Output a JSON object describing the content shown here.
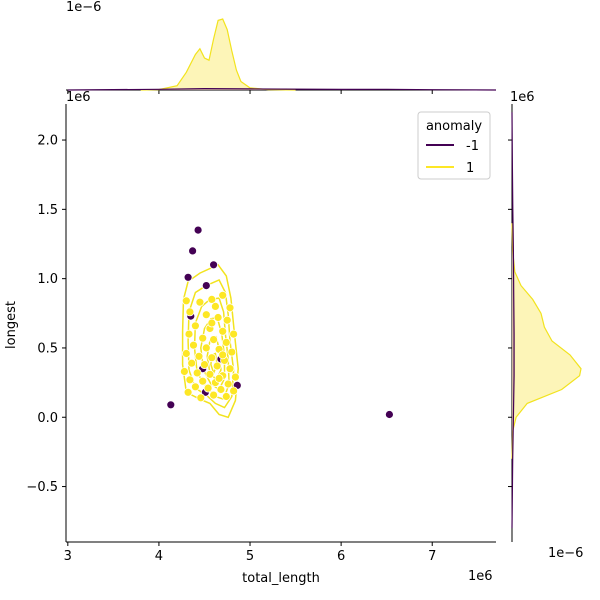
{
  "chart_data": {
    "type": "scatter",
    "title": "",
    "xlabel": "total_length",
    "ylabel": "longest",
    "x_offset_label": "1e6",
    "y_offset_label": "1e6",
    "top_margin_offset_label": "1e−6",
    "right_margin_offset_label": "1e−6",
    "right_margin_top_label": "1e6",
    "xlim": [
      2.98,
      7.7
    ],
    "ylim": [
      -0.9,
      2.26
    ],
    "xticks": [
      3,
      4,
      5,
      6,
      7
    ],
    "yticks": [
      -0.5,
      0.0,
      0.5,
      1.0,
      1.5,
      2.0
    ],
    "xtick_labels": [
      "3",
      "4",
      "5",
      "6",
      "7"
    ],
    "ytick_labels": [
      "−0.5",
      "0.0",
      "0.5",
      "1.0",
      "1.5",
      "2.0"
    ],
    "legend": {
      "title": "anomaly",
      "placement": "top-right",
      "entries": [
        {
          "label": "-1",
          "color": "#440154"
        },
        {
          "label": "1",
          "color": "#fde725"
        }
      ]
    },
    "colors": {
      "anomaly": "#440154",
      "normal": "#fde725",
      "normal_line": "#f2e31e",
      "normal_fill": "#fdf5b8"
    },
    "series": [
      {
        "name": "-1",
        "points": [
          [
            4.43,
            1.35
          ],
          [
            4.37,
            1.2
          ],
          [
            4.6,
            1.1
          ],
          [
            4.32,
            1.01
          ],
          [
            4.52,
            0.95
          ],
          [
            4.35,
            0.73
          ],
          [
            4.68,
            0.42
          ],
          [
            4.48,
            0.35
          ],
          [
            4.86,
            0.23
          ],
          [
            4.51,
            0.18
          ],
          [
            4.13,
            0.09
          ],
          [
            6.53,
            0.02
          ]
        ]
      },
      {
        "name": "1",
        "points": [
          [
            4.3,
            0.84
          ],
          [
            4.45,
            0.83
          ],
          [
            4.58,
            0.85
          ],
          [
            4.62,
            0.8
          ],
          [
            4.7,
            0.88
          ],
          [
            4.78,
            0.79
          ],
          [
            4.34,
            0.76
          ],
          [
            4.52,
            0.74
          ],
          [
            4.65,
            0.72
          ],
          [
            4.75,
            0.7
          ],
          [
            4.4,
            0.66
          ],
          [
            4.56,
            0.64
          ],
          [
            4.7,
            0.62
          ],
          [
            4.82,
            0.6
          ],
          [
            4.33,
            0.6
          ],
          [
            4.48,
            0.57
          ],
          [
            4.6,
            0.56
          ],
          [
            4.74,
            0.54
          ],
          [
            4.38,
            0.52
          ],
          [
            4.52,
            0.5
          ],
          [
            4.66,
            0.49
          ],
          [
            4.8,
            0.47
          ],
          [
            4.3,
            0.46
          ],
          [
            4.44,
            0.44
          ],
          [
            4.58,
            0.43
          ],
          [
            4.72,
            0.41
          ],
          [
            4.36,
            0.39
          ],
          [
            4.5,
            0.38
          ],
          [
            4.64,
            0.37
          ],
          [
            4.78,
            0.35
          ],
          [
            4.28,
            0.33
          ],
          [
            4.42,
            0.32
          ],
          [
            4.56,
            0.31
          ],
          [
            4.7,
            0.3
          ],
          [
            4.84,
            0.29
          ],
          [
            4.34,
            0.27
          ],
          [
            4.48,
            0.26
          ],
          [
            4.62,
            0.25
          ],
          [
            4.76,
            0.24
          ],
          [
            4.4,
            0.22
          ],
          [
            4.54,
            0.21
          ],
          [
            4.68,
            0.2
          ],
          [
            4.82,
            0.19
          ],
          [
            4.32,
            0.18
          ],
          [
            4.6,
            0.16
          ],
          [
            4.74,
            0.15
          ],
          [
            4.46,
            0.14
          ],
          [
            4.66,
            0.28
          ],
          [
            4.58,
            0.68
          ],
          [
            4.7,
            0.45
          ]
        ]
      }
    ],
    "marginals": [
      {
        "axis": "x",
        "series": "1",
        "x": [
          3.8,
          4.0,
          4.2,
          4.3,
          4.4,
          4.45,
          4.5,
          4.55,
          4.6,
          4.65,
          4.7,
          4.75,
          4.8,
          4.85,
          4.9,
          5.0,
          5.2,
          5.5
        ],
        "density": [
          0.0,
          0.005,
          0.06,
          0.25,
          0.5,
          0.58,
          0.45,
          0.42,
          0.72,
          0.98,
          1.0,
          0.85,
          0.55,
          0.28,
          0.12,
          0.03,
          0.005,
          0.0
        ]
      },
      {
        "axis": "x",
        "series": "-1",
        "x": [
          3.0,
          4.0,
          4.5,
          5.0,
          6.0,
          6.5,
          7.0,
          7.7
        ],
        "density": [
          0.0,
          0.01,
          0.02,
          0.015,
          0.008,
          0.01,
          0.004,
          0.0
        ]
      },
      {
        "axis": "y",
        "series": "1",
        "y": [
          -0.3,
          -0.1,
          0.0,
          0.1,
          0.2,
          0.3,
          0.35,
          0.45,
          0.55,
          0.65,
          0.75,
          0.85,
          0.95,
          1.05,
          1.2,
          1.4
        ],
        "density": [
          0.0,
          0.01,
          0.06,
          0.22,
          0.72,
          0.98,
          1.0,
          0.84,
          0.58,
          0.47,
          0.42,
          0.3,
          0.13,
          0.04,
          0.01,
          0.0
        ]
      },
      {
        "axis": "y",
        "series": "-1",
        "y": [
          -0.8,
          -0.3,
          0.0,
          0.3,
          0.6,
          0.9,
          1.2,
          1.5,
          1.8,
          2.2
        ],
        "density": [
          0.0,
          0.01,
          0.02,
          0.03,
          0.03,
          0.025,
          0.02,
          0.012,
          0.006,
          0.0
        ]
      }
    ],
    "contours": [
      {
        "series": "1",
        "level": 1,
        "points": [
          [
            4.65,
            1.1
          ],
          [
            4.74,
            1.02
          ],
          [
            4.79,
            0.86
          ],
          [
            4.83,
            0.6
          ],
          [
            4.87,
            0.35
          ],
          [
            4.84,
            0.12
          ],
          [
            4.76,
            0.0
          ],
          [
            4.66,
            0.02
          ],
          [
            4.56,
            0.1
          ],
          [
            4.45,
            0.13
          ],
          [
            4.3,
            0.18
          ],
          [
            4.26,
            0.38
          ],
          [
            4.26,
            0.62
          ],
          [
            4.27,
            0.85
          ],
          [
            4.32,
            0.98
          ],
          [
            4.45,
            1.04
          ]
        ]
      },
      {
        "series": "1",
        "level": 2,
        "points": [
          [
            4.66,
            0.99
          ],
          [
            4.73,
            0.9
          ],
          [
            4.76,
            0.74
          ],
          [
            4.78,
            0.55
          ],
          [
            4.82,
            0.34
          ],
          [
            4.8,
            0.15
          ],
          [
            4.72,
            0.07
          ],
          [
            4.62,
            0.1
          ],
          [
            4.52,
            0.16
          ],
          [
            4.4,
            0.21
          ],
          [
            4.33,
            0.34
          ],
          [
            4.32,
            0.55
          ],
          [
            4.33,
            0.76
          ],
          [
            4.4,
            0.9
          ],
          [
            4.52,
            0.95
          ]
        ]
      },
      {
        "series": "1",
        "level": 3,
        "points": [
          [
            4.66,
            0.86
          ],
          [
            4.71,
            0.76
          ],
          [
            4.73,
            0.6
          ],
          [
            4.76,
            0.42
          ],
          [
            4.77,
            0.24
          ],
          [
            4.71,
            0.13
          ],
          [
            4.62,
            0.15
          ],
          [
            4.52,
            0.22
          ],
          [
            4.42,
            0.32
          ],
          [
            4.39,
            0.5
          ],
          [
            4.4,
            0.68
          ],
          [
            4.47,
            0.8
          ],
          [
            4.56,
            0.85
          ]
        ]
      },
      {
        "series": "1",
        "level": 4,
        "points": [
          [
            4.64,
            0.72
          ],
          [
            4.69,
            0.6
          ],
          [
            4.72,
            0.44
          ],
          [
            4.72,
            0.28
          ],
          [
            4.66,
            0.2
          ],
          [
            4.57,
            0.24
          ],
          [
            4.49,
            0.34
          ],
          [
            4.46,
            0.5
          ],
          [
            4.5,
            0.64
          ],
          [
            4.57,
            0.71
          ]
        ]
      },
      {
        "series": "1",
        "level": 5,
        "points": [
          [
            4.63,
            0.58
          ],
          [
            4.67,
            0.46
          ],
          [
            4.68,
            0.34
          ],
          [
            4.63,
            0.27
          ],
          [
            4.56,
            0.32
          ],
          [
            4.53,
            0.44
          ],
          [
            4.56,
            0.55
          ]
        ]
      },
      {
        "series": "1",
        "level": 6,
        "points": [
          [
            4.62,
            0.46
          ],
          [
            4.64,
            0.38
          ],
          [
            4.6,
            0.32
          ],
          [
            4.57,
            0.38
          ],
          [
            4.58,
            0.45
          ]
        ]
      }
    ]
  }
}
